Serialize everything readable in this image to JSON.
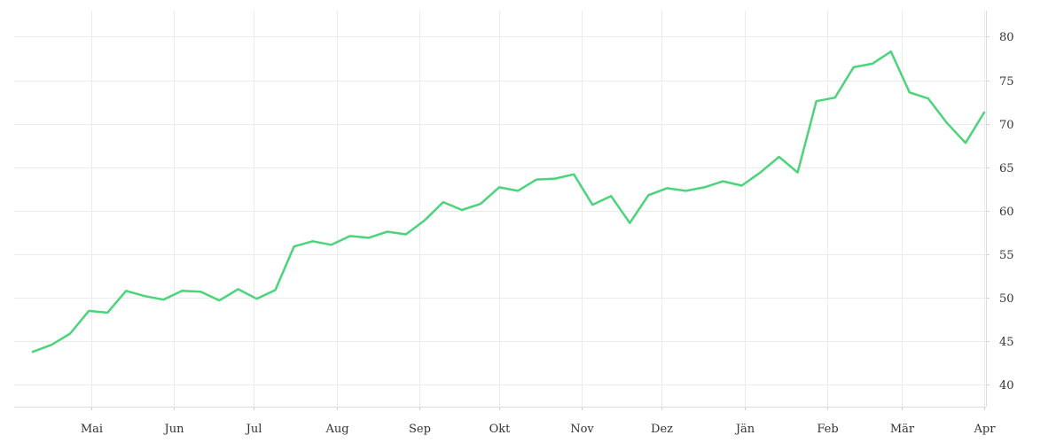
{
  "chart_data": {
    "type": "line",
    "title": "",
    "xlabel": "",
    "ylabel": "",
    "x_range": [
      "2021-04-02",
      "2022-04-01"
    ],
    "ylim": [
      37.5,
      83
    ],
    "y_ticks": [
      40,
      45,
      50,
      55,
      60,
      65,
      70,
      75,
      80
    ],
    "y_axis_side": "right",
    "grid": true,
    "legend": "none",
    "x_ticks": [
      {
        "date": "2021-05-01",
        "label": "Mai"
      },
      {
        "date": "2021-06-01",
        "label": "Jun"
      },
      {
        "date": "2021-07-01",
        "label": "Jul"
      },
      {
        "date": "2021-08-01",
        "label": "Aug"
      },
      {
        "date": "2021-09-01",
        "label": "Sep"
      },
      {
        "date": "2021-10-01",
        "label": "Okt"
      },
      {
        "date": "2021-11-01",
        "label": "Nov"
      },
      {
        "date": "2021-12-01",
        "label": "Dez"
      },
      {
        "date": "2022-01-01",
        "label": "Jän"
      },
      {
        "date": "2022-02-01",
        "label": "Feb"
      },
      {
        "date": "2022-03-01",
        "label": "Mär"
      },
      {
        "date": "2022-04-01",
        "label": "Apr"
      }
    ],
    "series": [
      {
        "color": "#4cd47c",
        "points": [
          [
            "2021-04-09",
            43.8
          ],
          [
            "2021-04-16",
            44.6
          ],
          [
            "2021-04-23",
            45.9
          ],
          [
            "2021-04-30",
            48.5
          ],
          [
            "2021-05-07",
            48.3
          ],
          [
            "2021-05-14",
            50.8
          ],
          [
            "2021-05-21",
            50.2
          ],
          [
            "2021-05-28",
            49.8
          ],
          [
            "2021-06-04",
            50.8
          ],
          [
            "2021-06-11",
            50.7
          ],
          [
            "2021-06-18",
            49.7
          ],
          [
            "2021-06-25",
            51.0
          ],
          [
            "2021-07-02",
            49.9
          ],
          [
            "2021-07-09",
            50.9
          ],
          [
            "2021-07-16",
            55.9
          ],
          [
            "2021-07-23",
            56.5
          ],
          [
            "2021-07-30",
            56.1
          ],
          [
            "2021-08-06",
            57.1
          ],
          [
            "2021-08-13",
            56.9
          ],
          [
            "2021-08-20",
            57.6
          ],
          [
            "2021-08-27",
            57.3
          ],
          [
            "2021-09-03",
            58.9
          ],
          [
            "2021-09-10",
            61.0
          ],
          [
            "2021-09-17",
            60.1
          ],
          [
            "2021-09-24",
            60.8
          ],
          [
            "2021-10-01",
            62.7
          ],
          [
            "2021-10-08",
            62.3
          ],
          [
            "2021-10-15",
            63.6
          ],
          [
            "2021-10-22",
            63.7
          ],
          [
            "2021-10-29",
            64.2
          ],
          [
            "2021-11-05",
            60.7
          ],
          [
            "2021-11-12",
            61.7
          ],
          [
            "2021-11-19",
            58.6
          ],
          [
            "2021-11-26",
            61.8
          ],
          [
            "2021-12-03",
            62.6
          ],
          [
            "2021-12-10",
            62.3
          ],
          [
            "2021-12-17",
            62.7
          ],
          [
            "2021-12-24",
            63.4
          ],
          [
            "2021-12-31",
            62.9
          ],
          [
            "2022-01-07",
            64.4
          ],
          [
            "2022-01-14",
            66.2
          ],
          [
            "2022-01-21",
            64.4
          ],
          [
            "2022-01-28",
            72.6
          ],
          [
            "2022-02-04",
            73.0
          ],
          [
            "2022-02-11",
            76.5
          ],
          [
            "2022-02-18",
            76.9
          ],
          [
            "2022-02-25",
            78.3
          ],
          [
            "2022-03-04",
            73.6
          ],
          [
            "2022-03-11",
            72.9
          ],
          [
            "2022-03-18",
            70.1
          ],
          [
            "2022-03-25",
            67.8
          ],
          [
            "2022-04-01",
            71.3
          ]
        ]
      }
    ]
  }
}
